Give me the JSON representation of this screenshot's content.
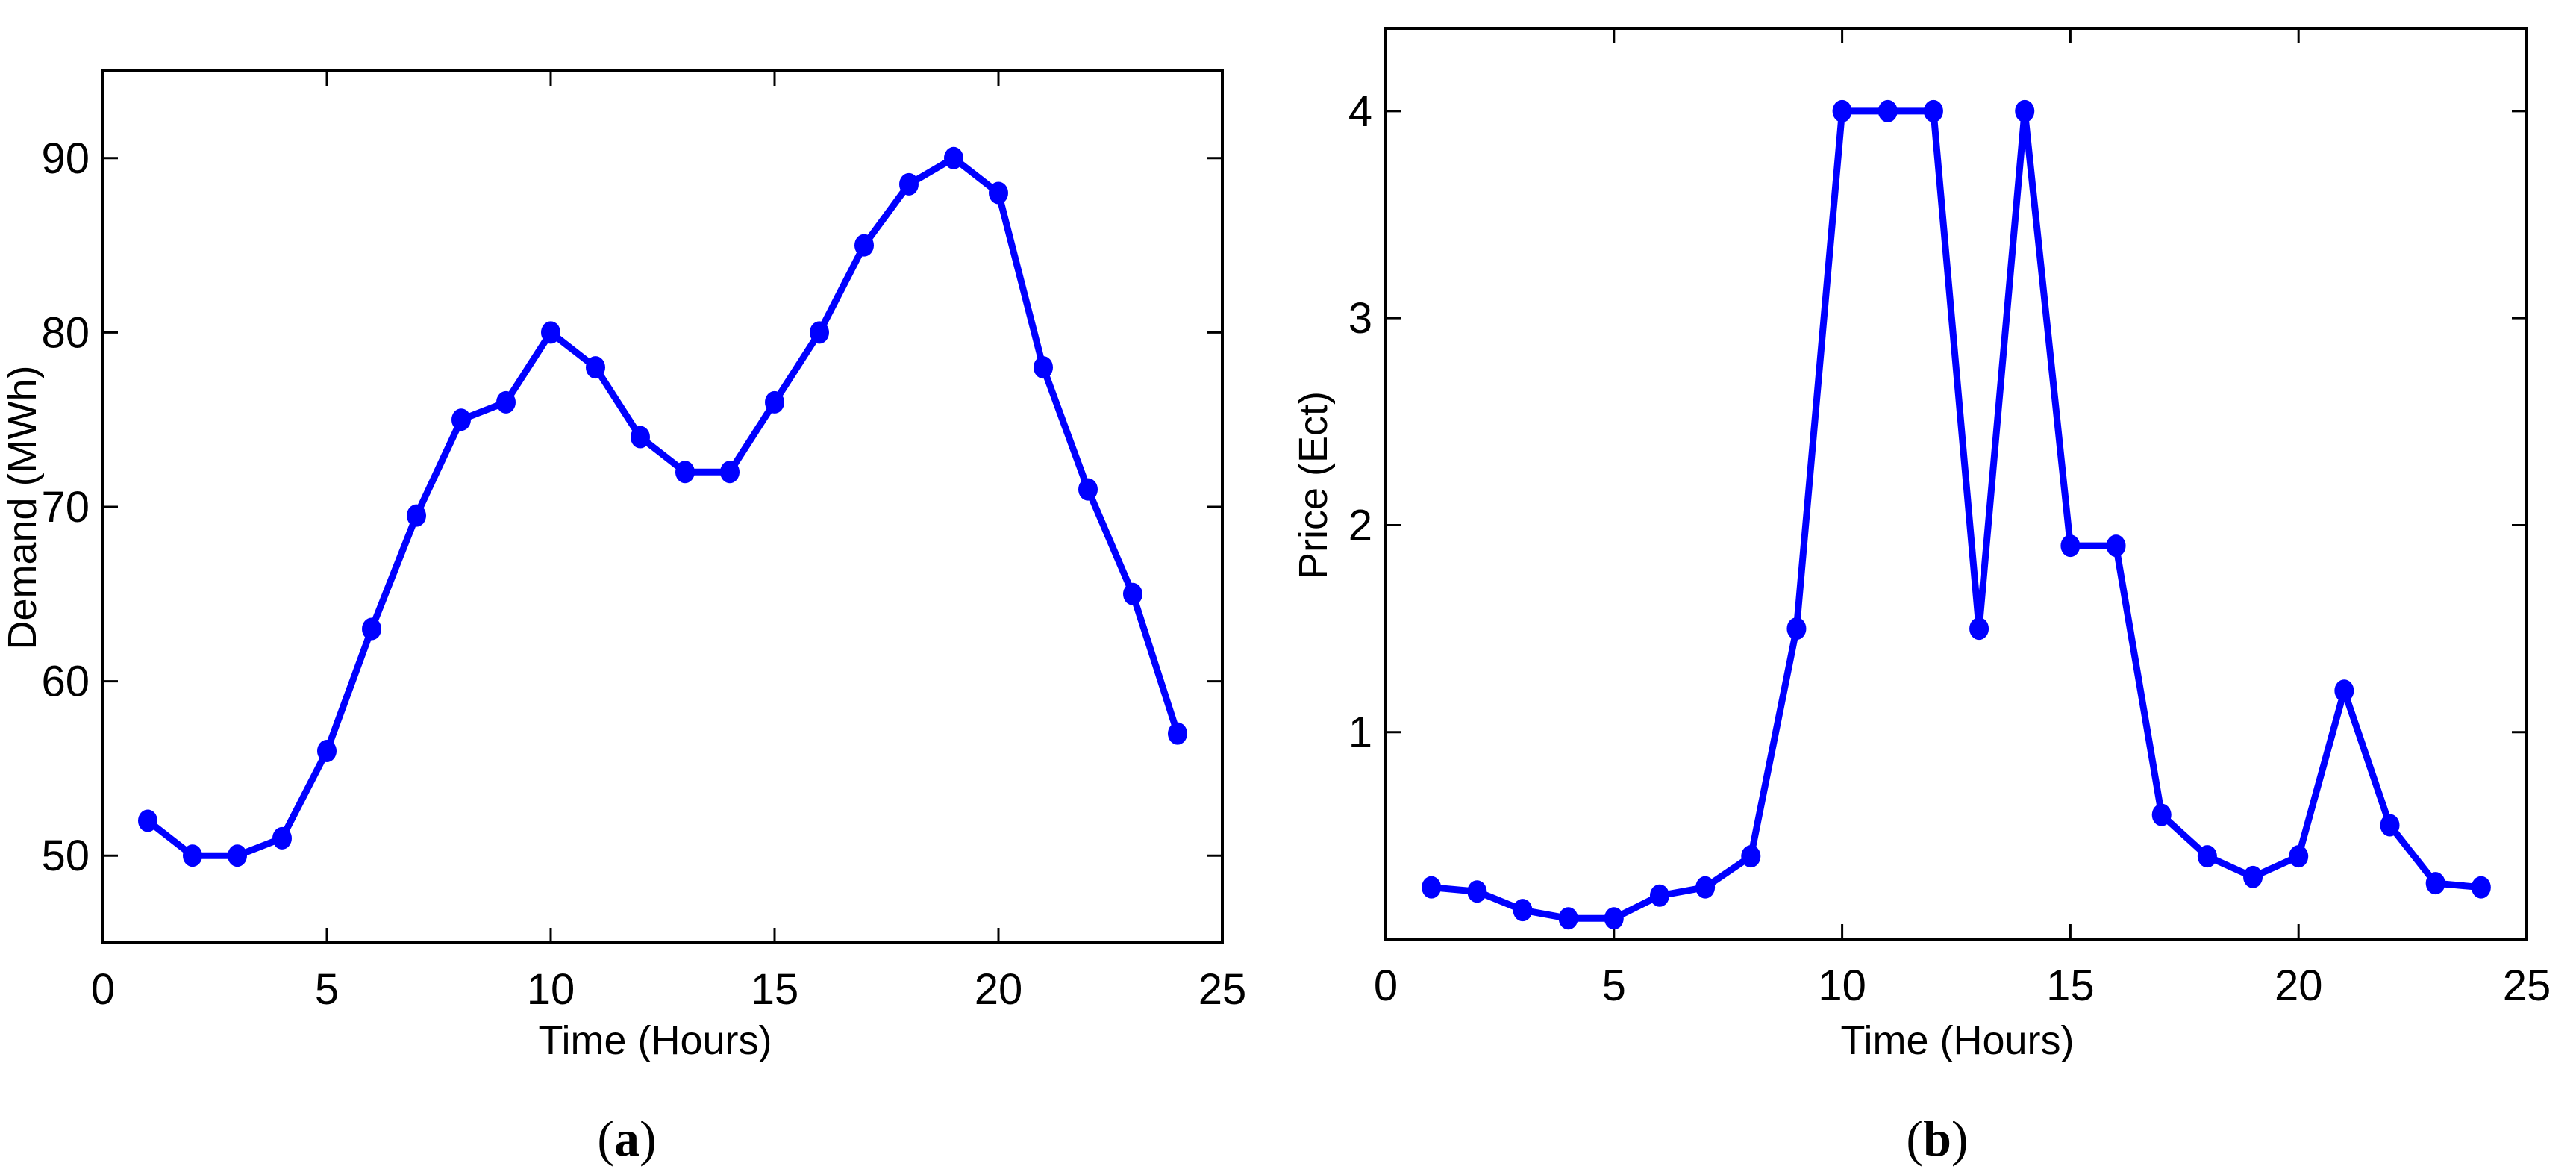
{
  "figure": {
    "panels": [
      {
        "caption_letter": "a",
        "xlabel": "Time (Hours)",
        "ylabel": "Demand (MWh)"
      },
      {
        "caption_letter": "b",
        "xlabel": "Time (Hours)",
        "ylabel": "Price (Ect)"
      }
    ]
  },
  "colors": {
    "series": "#0000ff",
    "axis": "#000000",
    "background": "#ffffff"
  },
  "chart_data": [
    {
      "type": "line",
      "title": "",
      "caption": "(a)",
      "xlabel": "Time (Hours)",
      "ylabel": "Demand (MWh)",
      "xlim": [
        0,
        25
      ],
      "ylim": [
        45,
        95
      ],
      "xticks": [
        0,
        5,
        10,
        15,
        20,
        25
      ],
      "yticks": [
        50,
        60,
        70,
        80,
        90
      ],
      "grid": false,
      "legend": null,
      "x": [
        1,
        2,
        3,
        4,
        5,
        6,
        7,
        8,
        9,
        10,
        11,
        12,
        13,
        14,
        15,
        16,
        17,
        18,
        19,
        20,
        21,
        22,
        23,
        24
      ],
      "series": [
        {
          "name": "Demand",
          "color": "#0000ff",
          "marker": "circle",
          "values": [
            52,
            50,
            50,
            51,
            56,
            63,
            69.5,
            75,
            76,
            80,
            78,
            74,
            72,
            72,
            76,
            80,
            85,
            88.5,
            90,
            88,
            78,
            71,
            65,
            57
          ]
        }
      ]
    },
    {
      "type": "line",
      "title": "",
      "caption": "(b)",
      "xlabel": "Time (Hours)",
      "ylabel": "Price (Ect)",
      "xlim": [
        0,
        25
      ],
      "ylim": [
        0,
        4.4
      ],
      "xticks": [
        0,
        5,
        10,
        15,
        20,
        25
      ],
      "yticks": [
        1,
        2,
        3,
        4
      ],
      "grid": false,
      "legend": null,
      "x": [
        1,
        2,
        3,
        4,
        5,
        6,
        7,
        8,
        9,
        10,
        11,
        12,
        13,
        14,
        15,
        16,
        17,
        18,
        19,
        20,
        21,
        22,
        23,
        24
      ],
      "series": [
        {
          "name": "Price",
          "color": "#0000ff",
          "marker": "circle",
          "values": [
            0.25,
            0.23,
            0.14,
            0.1,
            0.1,
            0.21,
            0.25,
            0.4,
            1.5,
            4,
            4,
            4,
            1.5,
            4,
            1.9,
            1.9,
            0.6,
            0.4,
            0.3,
            0.4,
            1.2,
            0.55,
            0.27,
            0.25
          ]
        }
      ]
    }
  ]
}
